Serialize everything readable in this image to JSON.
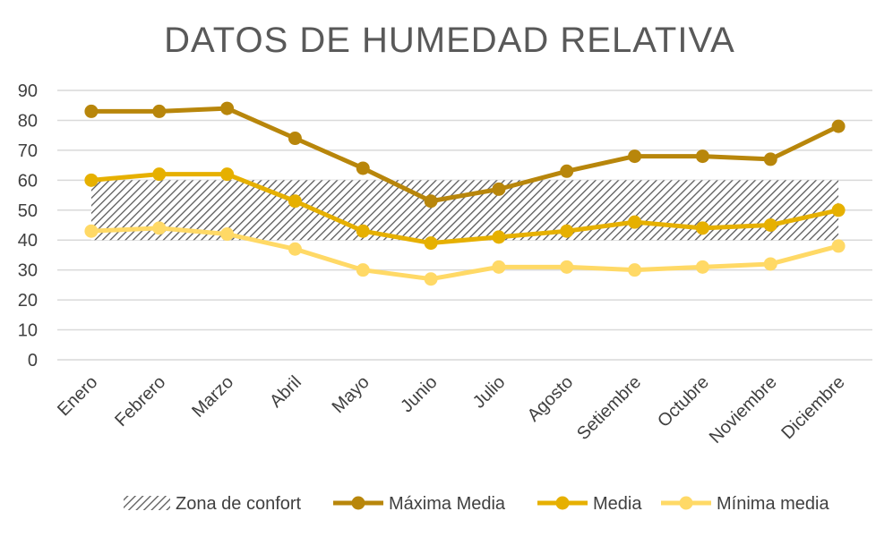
{
  "chart_data": {
    "type": "line",
    "title": "DATOS DE HUMEDAD RELATIVA",
    "xlabel": "",
    "ylabel": "",
    "ylim": [
      0,
      90
    ],
    "yticks": [
      0,
      10,
      20,
      30,
      40,
      50,
      60,
      70,
      80,
      90
    ],
    "grid": true,
    "legend_position": "bottom",
    "categories": [
      "Enero",
      "Febrero",
      "Marzo",
      "Abril",
      "Mayo",
      "Junio",
      "Julio",
      "Agosto",
      "Setiembre",
      "Octubre",
      "Noviembre",
      "Diciembre"
    ],
    "band": {
      "name": "Zona de confort",
      "from": 40,
      "to": 60,
      "color": "#595959"
    },
    "series": [
      {
        "name": "Máxima Media",
        "color": "#b8860b",
        "values": [
          83,
          83,
          84,
          74,
          64,
          53,
          57,
          63,
          68,
          68,
          67,
          78
        ]
      },
      {
        "name": "Media",
        "color": "#e6b000",
        "values": [
          60,
          62,
          62,
          53,
          43,
          39,
          41,
          43,
          46,
          44,
          45,
          50
        ]
      },
      {
        "name": "Mínima media",
        "color": "#ffd966",
        "values": [
          43,
          44,
          42,
          37,
          30,
          27,
          31,
          31,
          30,
          31,
          32,
          38
        ]
      }
    ]
  }
}
